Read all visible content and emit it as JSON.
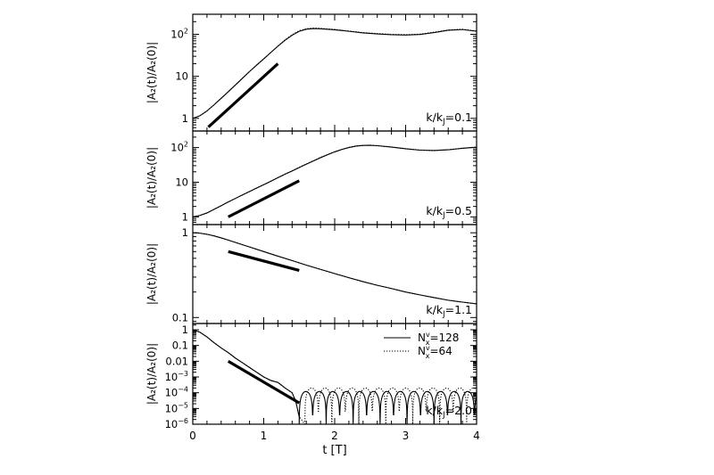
{
  "chart_data": {
    "type": "line",
    "x_label": "t  [T]",
    "x_range": [
      0,
      4
    ],
    "x_ticks": [
      "0",
      "1",
      "2",
      "3",
      "4"
    ],
    "panels": [
      {
        "ylabel": "|A₂(t)/A₂(0)|",
        "y_scale": "log",
        "y_range": [
          0.5,
          300
        ],
        "y_ticks": [
          {
            "value": 1,
            "base": "1",
            "exp": ""
          },
          {
            "value": 10,
            "base": "10",
            "exp": ""
          },
          {
            "value": 100,
            "base": "10",
            "exp": "2"
          }
        ],
        "annotation": "k/k_J=0.1",
        "series": [
          {
            "style": "solid",
            "x": [
              0,
              0.1,
              0.2,
              0.3,
              0.4,
              0.5,
              0.6,
              0.7,
              0.8,
              0.9,
              1.0,
              1.1,
              1.2,
              1.3,
              1.4,
              1.5,
              1.6,
              1.7,
              1.8,
              2.0,
              2.2,
              2.4,
              2.6,
              2.8,
              3.0,
              3.2,
              3.4,
              3.6,
              3.8,
              4.0
            ],
            "y": [
              1.0,
              1.15,
              1.5,
              2.1,
              3.0,
              4.3,
              6.2,
              9.0,
              13,
              18.5,
              26,
              37,
              52,
              72,
              95,
              118,
              132,
              137,
              135,
              128,
              118,
              108,
              102,
              98,
              96,
              99,
              110,
              125,
              130,
              118
            ]
          },
          {
            "style": "dotted",
            "x": [
              0,
              0.1,
              0.2,
              0.3,
              0.4,
              0.5,
              0.6,
              0.7,
              0.8,
              0.9,
              1.0,
              1.1,
              1.2,
              1.3,
              1.4,
              1.5,
              1.6,
              1.7,
              1.8,
              2.0,
              2.2,
              2.4,
              2.6,
              2.8,
              3.0,
              3.2,
              3.4,
              3.6,
              3.8,
              4.0
            ],
            "y": [
              1.0,
              1.15,
              1.5,
              2.1,
              3.0,
              4.3,
              6.2,
              9.0,
              13,
              18.5,
              26,
              37,
              53,
              74,
              98,
              122,
              136,
              141,
              139,
              131,
              120,
              110,
              104,
              100,
              98,
              101,
              112,
              127,
              132,
              120
            ]
          }
        ],
        "guide": {
          "x": [
            0.22,
            1.2
          ],
          "y": [
            0.62,
            20
          ]
        }
      },
      {
        "ylabel": "|A₂(t)/A₂(0)|",
        "y_scale": "log",
        "y_range": [
          0.6,
          300
        ],
        "y_ticks": [
          {
            "value": 1,
            "base": "1",
            "exp": ""
          },
          {
            "value": 10,
            "base": "10",
            "exp": ""
          },
          {
            "value": 100,
            "base": "10",
            "exp": "2"
          }
        ],
        "annotation": "k/k_J=0.5",
        "series": [
          {
            "style": "solid",
            "x": [
              0,
              0.1,
              0.2,
              0.3,
              0.4,
              0.5,
              0.6,
              0.7,
              0.8,
              0.9,
              1.0,
              1.1,
              1.2,
              1.3,
              1.4,
              1.5,
              1.6,
              1.7,
              1.8,
              1.9,
              2.0,
              2.1,
              2.2,
              2.3,
              2.4,
              2.5,
              2.6,
              2.8,
              3.0,
              3.2,
              3.4,
              3.6,
              3.8,
              4.0
            ],
            "y": [
              1.0,
              1.1,
              1.3,
              1.65,
              2.1,
              2.7,
              3.4,
              4.3,
              5.4,
              6.8,
              8.5,
              10.7,
              13.5,
              17,
              21,
              26.5,
              33,
              41,
              51,
              62,
              75,
              88,
              100,
              110,
              115,
              116,
              113,
              103,
              92,
              84,
              82,
              86,
              95,
              102
            ]
          },
          {
            "style": "dotted",
            "x": [
              0,
              0.1,
              0.2,
              0.3,
              0.4,
              0.5,
              0.6,
              0.7,
              0.8,
              0.9,
              1.0,
              1.1,
              1.2,
              1.3,
              1.4,
              1.5,
              1.6,
              1.7,
              1.8,
              1.9,
              2.0,
              2.1,
              2.2,
              2.3,
              2.4,
              2.5,
              2.6,
              2.8,
              3.0,
              3.2,
              3.4,
              3.6,
              3.8,
              4.0
            ],
            "y": [
              1.0,
              1.1,
              1.3,
              1.65,
              2.1,
              2.7,
              3.4,
              4.3,
              5.4,
              6.8,
              8.5,
              10.7,
              13.6,
              17.2,
              21.3,
              27,
              33.5,
              41.5,
              52,
              63,
              76,
              89,
              101,
              111,
              116,
              117,
              114,
              104,
              93,
              85,
              83,
              87,
              96,
              103
            ]
          }
        ],
        "guide": {
          "x": [
            0.5,
            1.5
          ],
          "y": [
            1.0,
            11
          ]
        }
      },
      {
        "ylabel": "|A₂(t)/A₂(0)|",
        "y_scale": "log",
        "y_range": [
          0.085,
          1.25
        ],
        "y_ticks": [
          {
            "value": 1,
            "base": "1",
            "exp": ""
          },
          {
            "value": 0.1,
            "base": "0.1",
            "exp": ""
          }
        ],
        "annotation": "k/k_J=1.1",
        "series": [
          {
            "style": "solid",
            "x": [
              0,
              0.1,
              0.2,
              0.3,
              0.4,
              0.5,
              0.6,
              0.8,
              1.0,
              1.2,
              1.4,
              1.6,
              1.8,
              2.0,
              2.2,
              2.4,
              2.6,
              2.8,
              3.0,
              3.2,
              3.4,
              3.6,
              3.8,
              4.0
            ],
            "y": [
              1.0,
              0.99,
              0.96,
              0.92,
              0.87,
              0.82,
              0.77,
              0.68,
              0.6,
              0.53,
              0.47,
              0.415,
              0.37,
              0.33,
              0.295,
              0.265,
              0.24,
              0.22,
              0.2,
              0.185,
              0.172,
              0.16,
              0.152,
              0.145
            ]
          },
          {
            "style": "dotted",
            "x": [
              0,
              0.1,
              0.2,
              0.3,
              0.4,
              0.5,
              0.6,
              0.8,
              1.0,
              1.2,
              1.4,
              1.6,
              1.8,
              2.0,
              2.2,
              2.4,
              2.6,
              2.8,
              3.0,
              3.2,
              3.4,
              3.6,
              3.8,
              4.0
            ],
            "y": [
              1.0,
              0.99,
              0.96,
              0.92,
              0.87,
              0.82,
              0.77,
              0.68,
              0.6,
              0.53,
              0.47,
              0.415,
              0.37,
              0.33,
              0.295,
              0.265,
              0.24,
              0.22,
              0.2,
              0.185,
              0.172,
              0.16,
              0.152,
              0.145
            ]
          }
        ],
        "guide": {
          "x": [
            0.5,
            1.5
          ],
          "y": [
            0.6,
            0.36
          ]
        }
      },
      {
        "ylabel": "|A₂(t)/A₂(0)|",
        "y_scale": "log",
        "y_range": [
          1e-06,
          2.5
        ],
        "y_ticks": [
          {
            "value": 1,
            "base": "1",
            "exp": ""
          },
          {
            "value": 0.1,
            "base": "0.1",
            "exp": ""
          },
          {
            "value": 0.01,
            "base": "0.01",
            "exp": ""
          },
          {
            "value": 0.001,
            "base": "10",
            "exp": "−3"
          },
          {
            "value": 0.0001,
            "base": "10",
            "exp": "−4"
          },
          {
            "value": 1e-05,
            "base": "10",
            "exp": "−5"
          },
          {
            "value": 1e-06,
            "base": "10",
            "exp": "−6"
          }
        ],
        "annotation": "k/k_J=2.0",
        "legend": {
          "position": "top-right",
          "entries": [
            {
              "style": "solid",
              "label": "N",
              "sub": "x",
              "sup": "v",
              "value": "=128"
            },
            {
              "style": "dotted",
              "label": "N",
              "sub": "x",
              "sup": "v",
              "value": "=64"
            }
          ]
        },
        "series": [
          {
            "style": "solid",
            "decay_x": [
              0,
              0.1,
              0.2,
              0.3,
              0.4,
              0.5,
              0.6,
              0.7,
              0.8,
              0.9,
              1.0,
              1.1,
              1.2,
              1.3,
              1.4,
              1.45,
              1.5
            ],
            "decay_y": [
              1.0,
              0.7,
              0.35,
              0.15,
              0.07,
              0.035,
              0.016,
              0.008,
              0.004,
              0.002,
              0.001,
              0.0006,
              0.00045,
              0.0002,
              0.0001,
              3e-05,
              3e-06
            ],
            "osc_start": 1.5,
            "osc_period": 0.19,
            "osc_peak": 0.00012,
            "osc_floor": 1e-06
          },
          {
            "style": "dotted",
            "decay_x": [
              0,
              0.1,
              0.2,
              0.3,
              0.4,
              0.5,
              0.6,
              0.7,
              0.8,
              0.9,
              1.0,
              1.1,
              1.2,
              1.3,
              1.4,
              1.45,
              1.5
            ],
            "decay_y": [
              1.0,
              0.7,
              0.35,
              0.15,
              0.07,
              0.035,
              0.016,
              0.008,
              0.004,
              0.002,
              0.001,
              0.0006,
              0.00045,
              0.0002,
              0.0001,
              3e-05,
              3e-06
            ],
            "osc_start": 1.58,
            "osc_period": 0.19,
            "osc_peak": 0.0002,
            "osc_floor": 1e-06
          }
        ],
        "guide": {
          "x": [
            0.5,
            1.5
          ],
          "y": [
            0.01,
            2.25e-05
          ]
        }
      }
    ]
  }
}
